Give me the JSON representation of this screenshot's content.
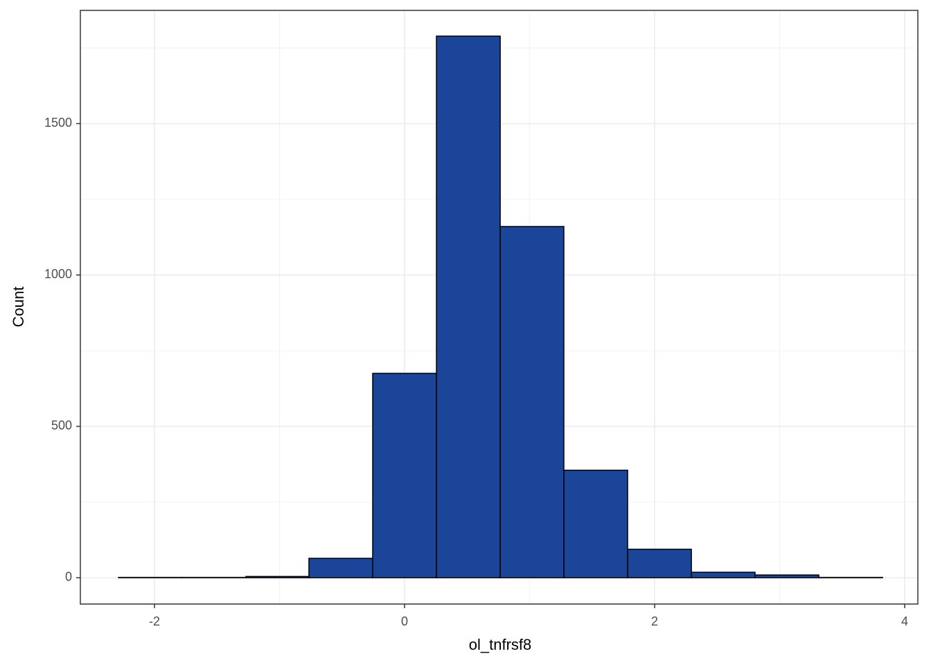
{
  "chart_data": {
    "type": "histogram",
    "x_label": "ol_tnfrsf8",
    "y_label": "Count",
    "bins": [
      -2.288,
      -1.778,
      -1.269,
      -0.765,
      -0.255,
      0.255,
      0.765,
      1.274,
      1.784,
      2.294,
      2.803,
      3.313,
      3.823
    ],
    "values": [
      1,
      1,
      4,
      64,
      675,
      1789,
      1160,
      355,
      94,
      18,
      9,
      1
    ],
    "color": "#1a4599",
    "edge_color": "#000000",
    "xlim": [
      -2.593,
      4.105
    ],
    "ylim": [
      -87,
      1874
    ],
    "xticks": [
      -2,
      0,
      2,
      4
    ],
    "yticks": [
      0,
      500,
      1000,
      1500
    ],
    "minor_xticks": [
      -1,
      1,
      3
    ],
    "minor_yticks": [
      250,
      750,
      1250,
      1750
    ],
    "grid": true
  }
}
